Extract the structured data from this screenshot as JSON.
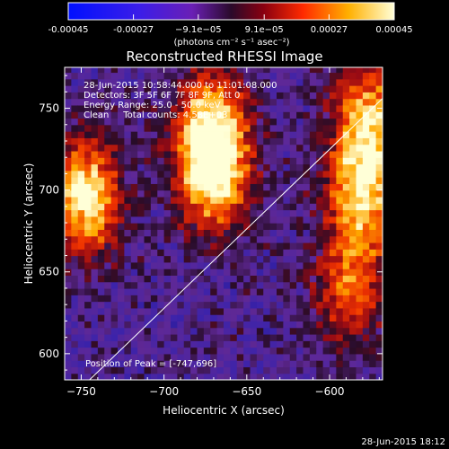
{
  "colorbar": {
    "tick_labels": [
      "-0.00045",
      "-0.00027",
      "−9.1e−05",
      "9.1e−05",
      "0.00027",
      "0.00045"
    ],
    "tick_values": [
      -0.00045,
      -0.00027,
      -9.1e-05,
      9.1e-05,
      0.00027,
      0.00045
    ],
    "unit_label": "(photons cm⁻² s⁻¹ asec⁻²)",
    "range": [
      -0.00045,
      0.00045
    ]
  },
  "chart_data": {
    "type": "heatmap",
    "title": "Reconstructed RHESSI Image",
    "xlabel": "Heliocentric X (arcsec)",
    "ylabel": "Heliocentric Y (arcsec)",
    "xlim": [
      -760,
      -568
    ],
    "ylim": [
      584,
      775
    ],
    "x_ticks": [
      -750,
      -700,
      -650,
      -600
    ],
    "y_ticks": [
      600,
      650,
      700,
      750
    ],
    "x_tick_labels": [
      "−750",
      "−700",
      "−650",
      "−600"
    ],
    "y_tick_labels": [
      "600",
      "650",
      "700",
      "750"
    ],
    "annotations": [
      "28-Jun-2015 10:58:44.000 to 11:01:08.000",
      "Detectors: 3F 5F 6F 7F 8F 9F, Att 0",
      "Energy Range: 25.0 - 50.0 keV",
      "Clean     Total counts: 4.58E+03"
    ],
    "peak_label": "Position of Peak = [-747,696]",
    "peak_position": [
      -747,
      696
    ],
    "limb_line": {
      "from": [
        -745,
        584
      ],
      "to": [
        -568,
        756
      ]
    },
    "bright_sources": [
      {
        "x": -748,
        "y": 697,
        "level": 1.0
      },
      {
        "x": -670,
        "y": 711,
        "level": 0.95
      },
      {
        "x": -672,
        "y": 740,
        "level": 0.75
      },
      {
        "x": -580,
        "y": 698,
        "level": 0.85
      },
      {
        "x": -576,
        "y": 745,
        "level": 0.8
      },
      {
        "x": -588,
        "y": 640,
        "level": 0.6
      }
    ]
  },
  "footer": {
    "timestamp": "28-Jun-2015 18:12"
  }
}
